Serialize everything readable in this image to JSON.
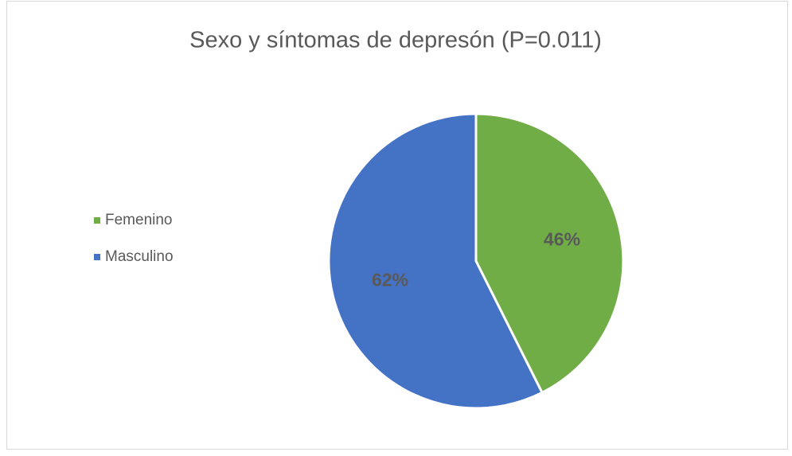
{
  "chart_data": {
    "type": "pie",
    "title": "Sexo y síntomas de depresón (P=0.011)",
    "categories": [
      "Femenino",
      "Masculino"
    ],
    "values": [
      46,
      62
    ],
    "value_labels": [
      "46%",
      "62%"
    ],
    "colors": [
      "#70ad47",
      "#4472c4"
    ],
    "legend": "left"
  }
}
